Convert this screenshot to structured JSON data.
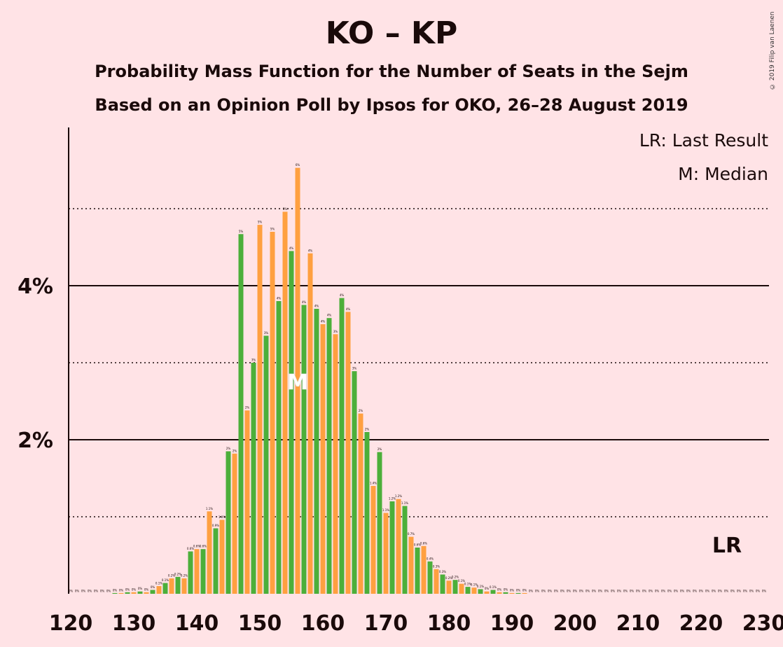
{
  "title": "KO – KP",
  "subtitle1": "Probability Mass Function for the Number of Seats in the Sejm",
  "subtitle2": "Based on an Opinion Poll by Ipsos for OKO, 26–28 August 2019",
  "copyright": "© 2019 Filip van Laenen",
  "legend": {
    "last_result": "LR: Last Result",
    "median": "M: Median"
  },
  "colors": {
    "background": "#ffe3e6",
    "green": "#4caf3a",
    "orange": "#ffa040",
    "text": "#1a0a0a"
  },
  "chart_data": {
    "type": "bar",
    "xlim": [
      120,
      230
    ],
    "ylim": [
      0,
      6
    ],
    "x_ticks": [
      "120",
      "130",
      "140",
      "150",
      "160",
      "170",
      "180",
      "190",
      "200",
      "210",
      "220",
      "230"
    ],
    "y_ticks": [
      {
        "value": 2,
        "label": "2%"
      },
      {
        "value": 4,
        "label": "4%"
      }
    ],
    "minor_gridlines": [
      1,
      3,
      5
    ],
    "median_seat": 156,
    "median_label": "M",
    "last_result_seat": 223,
    "last_result_label": "LR",
    "bars": [
      {
        "seat": 120,
        "value": 0,
        "label": "0%"
      },
      {
        "seat": 121,
        "value": 0,
        "label": "0%"
      },
      {
        "seat": 122,
        "value": 0,
        "label": "0%"
      },
      {
        "seat": 123,
        "value": 0,
        "label": "0%"
      },
      {
        "seat": 124,
        "value": 0,
        "label": "0%"
      },
      {
        "seat": 125,
        "value": 0,
        "label": "0%"
      },
      {
        "seat": 126,
        "value": 0,
        "label": "0%"
      },
      {
        "seat": 127,
        "value": 0.01,
        "label": "0%"
      },
      {
        "seat": 128,
        "value": 0.01,
        "label": "0%"
      },
      {
        "seat": 129,
        "value": 0.02,
        "label": "0%"
      },
      {
        "seat": 130,
        "value": 0.02,
        "label": "0%"
      },
      {
        "seat": 131,
        "value": 0.03,
        "label": "0%"
      },
      {
        "seat": 132,
        "value": 0.02,
        "label": "0%"
      },
      {
        "seat": 133,
        "value": 0.05,
        "label": "0%"
      },
      {
        "seat": 134,
        "value": 0.1,
        "label": "0.1%"
      },
      {
        "seat": 135,
        "value": 0.14,
        "label": "0.1%"
      },
      {
        "seat": 136,
        "value": 0.2,
        "label": "0.2%"
      },
      {
        "seat": 137,
        "value": 0.22,
        "label": "0.2%"
      },
      {
        "seat": 138,
        "value": 0.2,
        "label": "0.2%"
      },
      {
        "seat": 139,
        "value": 0.55,
        "label": "0.6%"
      },
      {
        "seat": 140,
        "value": 0.58,
        "label": "0.6%"
      },
      {
        "seat": 141,
        "value": 0.58,
        "label": "0.6%"
      },
      {
        "seat": 142,
        "value": 1.07,
        "label": "1.1%"
      },
      {
        "seat": 143,
        "value": 0.85,
        "label": "0.9%"
      },
      {
        "seat": 144,
        "value": 0.96,
        "label": "1.0%"
      },
      {
        "seat": 145,
        "value": 1.85,
        "label": "2%"
      },
      {
        "seat": 146,
        "value": 1.82,
        "label": "2%"
      },
      {
        "seat": 147,
        "value": 4.67,
        "label": "5%"
      },
      {
        "seat": 148,
        "value": 2.38,
        "label": "2%"
      },
      {
        "seat": 149,
        "value": 3.0,
        "label": "3%"
      },
      {
        "seat": 150,
        "value": 4.79,
        "label": "5%"
      },
      {
        "seat": 151,
        "value": 3.35,
        "label": "3%"
      },
      {
        "seat": 152,
        "value": 4.7,
        "label": "5%"
      },
      {
        "seat": 153,
        "value": 3.8,
        "label": "4%"
      },
      {
        "seat": 154,
        "value": 4.96,
        "label": "5%"
      },
      {
        "seat": 155,
        "value": 4.45,
        "label": "4%"
      },
      {
        "seat": 156,
        "value": 5.53,
        "label": "6%"
      },
      {
        "seat": 157,
        "value": 3.75,
        "label": "4%"
      },
      {
        "seat": 158,
        "value": 4.42,
        "label": "4%"
      },
      {
        "seat": 159,
        "value": 3.7,
        "label": "4%"
      },
      {
        "seat": 160,
        "value": 3.5,
        "label": "4%"
      },
      {
        "seat": 161,
        "value": 3.58,
        "label": "4%"
      },
      {
        "seat": 162,
        "value": 3.37,
        "label": "3%"
      },
      {
        "seat": 163,
        "value": 3.84,
        "label": "4%"
      },
      {
        "seat": 164,
        "value": 3.66,
        "label": "4%"
      },
      {
        "seat": 165,
        "value": 2.89,
        "label": "3%"
      },
      {
        "seat": 166,
        "value": 2.34,
        "label": "2%"
      },
      {
        "seat": 167,
        "value": 2.1,
        "label": "2%"
      },
      {
        "seat": 168,
        "value": 1.4,
        "label": "1.4%"
      },
      {
        "seat": 169,
        "value": 1.84,
        "label": "2%"
      },
      {
        "seat": 170,
        "value": 1.05,
        "label": "1.1%"
      },
      {
        "seat": 171,
        "value": 1.2,
        "label": "1.2%"
      },
      {
        "seat": 172,
        "value": 1.23,
        "label": "1.2%"
      },
      {
        "seat": 173,
        "value": 1.14,
        "label": "1.1%"
      },
      {
        "seat": 174,
        "value": 0.74,
        "label": "0.7%"
      },
      {
        "seat": 175,
        "value": 0.6,
        "label": "0.6%"
      },
      {
        "seat": 176,
        "value": 0.62,
        "label": "0.6%"
      },
      {
        "seat": 177,
        "value": 0.42,
        "label": "0.4%"
      },
      {
        "seat": 178,
        "value": 0.32,
        "label": "0.3%"
      },
      {
        "seat": 179,
        "value": 0.25,
        "label": "0.3%"
      },
      {
        "seat": 180,
        "value": 0.17,
        "label": "0.2%"
      },
      {
        "seat": 181,
        "value": 0.18,
        "label": "0.2%"
      },
      {
        "seat": 182,
        "value": 0.13,
        "label": "0.1%"
      },
      {
        "seat": 183,
        "value": 0.09,
        "label": "0.1%"
      },
      {
        "seat": 184,
        "value": 0.08,
        "label": "0.1%"
      },
      {
        "seat": 185,
        "value": 0.06,
        "label": "0.1%"
      },
      {
        "seat": 186,
        "value": 0.03,
        "label": "0%"
      },
      {
        "seat": 187,
        "value": 0.05,
        "label": "0.1%"
      },
      {
        "seat": 188,
        "value": 0.02,
        "label": "0%"
      },
      {
        "seat": 189,
        "value": 0.02,
        "label": "0%"
      },
      {
        "seat": 190,
        "value": 0.01,
        "label": "0%"
      },
      {
        "seat": 191,
        "value": 0.01,
        "label": "0%"
      },
      {
        "seat": 192,
        "value": 0.01,
        "label": "0%"
      },
      {
        "seat": 193,
        "value": 0,
        "label": "0%"
      },
      {
        "seat": 194,
        "value": 0,
        "label": "0%"
      },
      {
        "seat": 195,
        "value": 0,
        "label": "0%"
      },
      {
        "seat": 196,
        "value": 0,
        "label": "0%"
      },
      {
        "seat": 197,
        "value": 0,
        "label": "0%"
      },
      {
        "seat": 198,
        "value": 0,
        "label": "0%"
      },
      {
        "seat": 199,
        "value": 0,
        "label": "0%"
      },
      {
        "seat": 200,
        "value": 0,
        "label": "0%"
      },
      {
        "seat": 201,
        "value": 0,
        "label": "0%"
      },
      {
        "seat": 202,
        "value": 0,
        "label": "0%"
      },
      {
        "seat": 203,
        "value": 0,
        "label": "0%"
      },
      {
        "seat": 204,
        "value": 0,
        "label": "0%"
      },
      {
        "seat": 205,
        "value": 0,
        "label": "0%"
      },
      {
        "seat": 206,
        "value": 0,
        "label": "0%"
      },
      {
        "seat": 207,
        "value": 0,
        "label": "0%"
      },
      {
        "seat": 208,
        "value": 0,
        "label": "0%"
      },
      {
        "seat": 209,
        "value": 0,
        "label": "0%"
      },
      {
        "seat": 210,
        "value": 0,
        "label": "0%"
      },
      {
        "seat": 211,
        "value": 0,
        "label": "0%"
      },
      {
        "seat": 212,
        "value": 0,
        "label": "0%"
      },
      {
        "seat": 213,
        "value": 0,
        "label": "0%"
      },
      {
        "seat": 214,
        "value": 0,
        "label": "0%"
      },
      {
        "seat": 215,
        "value": 0,
        "label": "0%"
      },
      {
        "seat": 216,
        "value": 0,
        "label": "0%"
      },
      {
        "seat": 217,
        "value": 0,
        "label": "0%"
      },
      {
        "seat": 218,
        "value": 0,
        "label": "0%"
      },
      {
        "seat": 219,
        "value": 0,
        "label": "0%"
      },
      {
        "seat": 220,
        "value": 0,
        "label": "0%"
      },
      {
        "seat": 221,
        "value": 0,
        "label": "0%"
      },
      {
        "seat": 222,
        "value": 0,
        "label": "0%"
      },
      {
        "seat": 223,
        "value": 0,
        "label": "0%"
      },
      {
        "seat": 224,
        "value": 0,
        "label": "0%"
      },
      {
        "seat": 225,
        "value": 0,
        "label": "0%"
      },
      {
        "seat": 226,
        "value": 0,
        "label": "0%"
      },
      {
        "seat": 227,
        "value": 0,
        "label": "0%"
      },
      {
        "seat": 228,
        "value": 0,
        "label": "0%"
      },
      {
        "seat": 229,
        "value": 0,
        "label": "0%"
      },
      {
        "seat": 230,
        "value": 0,
        "label": "0%"
      }
    ]
  }
}
